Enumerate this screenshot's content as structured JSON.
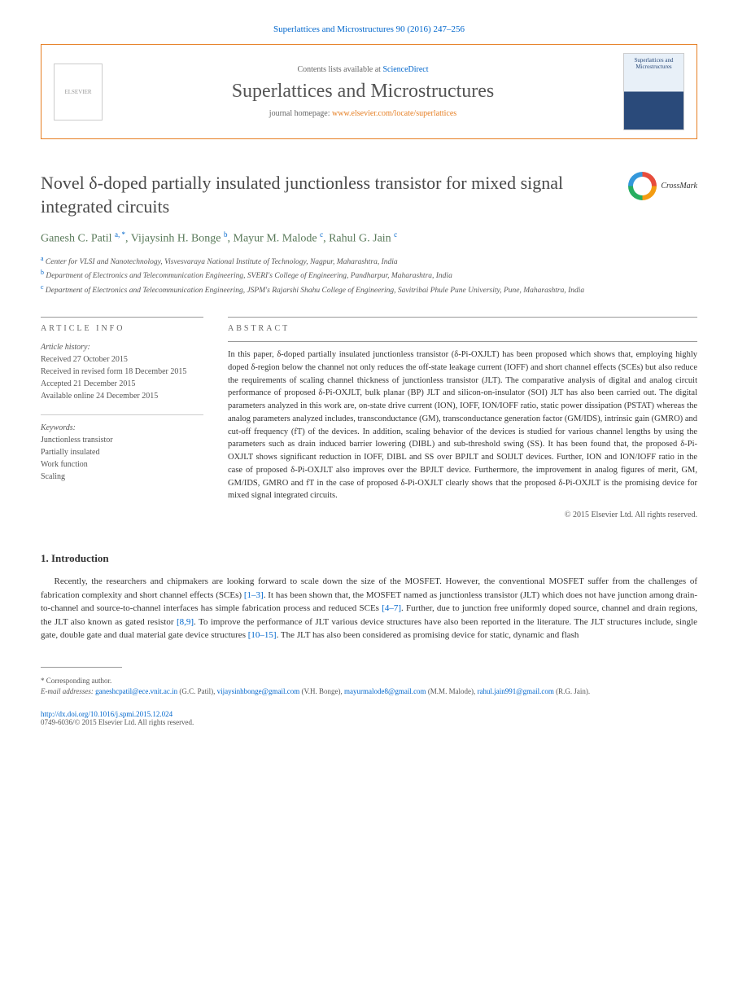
{
  "journal_ref": "Superlattices and Microstructures 90 (2016) 247–256",
  "header": {
    "contents_prefix": "Contents lists available at ",
    "contents_link": "ScienceDirect",
    "journal_name": "Superlattices and Microstructures",
    "homepage_prefix": "journal homepage: ",
    "homepage_url": "www.elsevier.com/locate/superlattices",
    "elsevier_label": "ELSEVIER",
    "cover_label": "Superlattices and Microstructures"
  },
  "crossmark_label": "CrossMark",
  "title": "Novel δ-doped partially insulated junctionless transistor for mixed signal integrated circuits",
  "authors_html": "Ganesh C. Patil <sup>a, *</sup>, Vijaysinh H. Bonge <sup>b</sup>, Mayur M. Malode <sup>c</sup>, Rahul G. Jain <sup>c</sup>",
  "affiliations": [
    {
      "sup": "a",
      "text": "Center for VLSI and Nanotechnology, Visvesvaraya National Institute of Technology, Nagpur, Maharashtra, India"
    },
    {
      "sup": "b",
      "text": "Department of Electronics and Telecommunication Engineering, SVERI's College of Engineering, Pandharpur, Maharashtra, India"
    },
    {
      "sup": "c",
      "text": "Department of Electronics and Telecommunication Engineering, JSPM's Rajarshi Shahu College of Engineering, Savitribai Phule Pune University, Pune, Maharashtra, India"
    }
  ],
  "info_label": "ARTICLE INFO",
  "abstract_label": "ABSTRACT",
  "history": {
    "label": "Article history:",
    "received": "Received 27 October 2015",
    "revised": "Received in revised form 18 December 2015",
    "accepted": "Accepted 21 December 2015",
    "online": "Available online 24 December 2015"
  },
  "keywords": {
    "label": "Keywords:",
    "items": [
      "Junctionless transistor",
      "Partially insulated",
      "Work function",
      "Scaling"
    ]
  },
  "abstract": "In this paper, δ-doped partially insulated junctionless transistor (δ-Pi-OXJLT) has been proposed which shows that, employing highly doped δ-region below the channel not only reduces the off-state leakage current (IOFF) and short channel effects (SCEs) but also reduce the requirements of scaling channel thickness of junctionless transistor (JLT). The comparative analysis of digital and analog circuit performance of proposed δ-Pi-OXJLT, bulk planar (BP) JLT and silicon-on-insulator (SOI) JLT has also been carried out. The digital parameters analyzed in this work are, on-state drive current (ION), IOFF, ION/IOFF ratio, static power dissipation (PSTAT) whereas the analog parameters analyzed includes, transconductance (GM), transconductance generation factor (GM/IDS), intrinsic gain (GMRO) and cut-off frequency (fT) of the devices. In addition, scaling behavior of the devices is studied for various channel lengths by using the parameters such as drain induced barrier lowering (DIBL) and sub-threshold swing (SS). It has been found that, the proposed δ-Pi-OXJLT shows significant reduction in IOFF, DIBL and SS over BPJLT and SOIJLT devices. Further, ION and ION/IOFF ratio in the case of proposed δ-Pi-OXJLT also improves over the BPJLT device. Furthermore, the improvement in analog figures of merit, GM, GM/IDS, GMRO and fT in the case of proposed δ-Pi-OXJLT clearly shows that the proposed δ-Pi-OXJLT is the promising device for mixed signal integrated circuits.",
  "copyright": "© 2015 Elsevier Ltd. All rights reserved.",
  "intro": {
    "heading": "1. Introduction",
    "paragraph": "Recently, the researchers and chipmakers are looking forward to scale down the size of the MOSFET. However, the conventional MOSFET suffer from the challenges of fabrication complexity and short channel effects (SCEs) [1–3]. It has been shown that, the MOSFET named as junctionless transistor (JLT) which does not have junction among drain-to-channel and source-to-channel interfaces has simple fabrication process and reduced SCEs [4–7]. Further, due to junction free uniformly doped source, channel and drain regions, the JLT also known as gated resistor [8,9]. To improve the performance of JLT various device structures have also been reported in the literature. The JLT structures include, single gate, double gate and dual material gate device structures [10–15]. The JLT has also been considered as promising device for static, dynamic and flash",
    "refs": {
      "r1": "[1–3]",
      "r2": "[4–7]",
      "r3": "[8,9]",
      "r4": "[10–15]"
    }
  },
  "footnotes": {
    "corr": "* Corresponding author.",
    "email_label": "E-mail addresses: ",
    "emails": [
      {
        "addr": "ganeshcpatil@ece.vnit.ac.in",
        "name": "(G.C. Patil)"
      },
      {
        "addr": "vijaysinhbonge@gmail.com",
        "name": "(V.H. Bonge)"
      },
      {
        "addr": "mayurmalode8@gmail.com",
        "name": "(M.M. Malode)"
      },
      {
        "addr": "rahul.jain991@gmail.com",
        "name": "(R.G. Jain)"
      }
    ]
  },
  "doi": "http://dx.doi.org/10.1016/j.spmi.2015.12.024",
  "issn_copy": "0749-6036/© 2015 Elsevier Ltd. All rights reserved.",
  "colors": {
    "link": "#0066cc",
    "accent": "#e67e22",
    "author": "#5a7a5a"
  }
}
